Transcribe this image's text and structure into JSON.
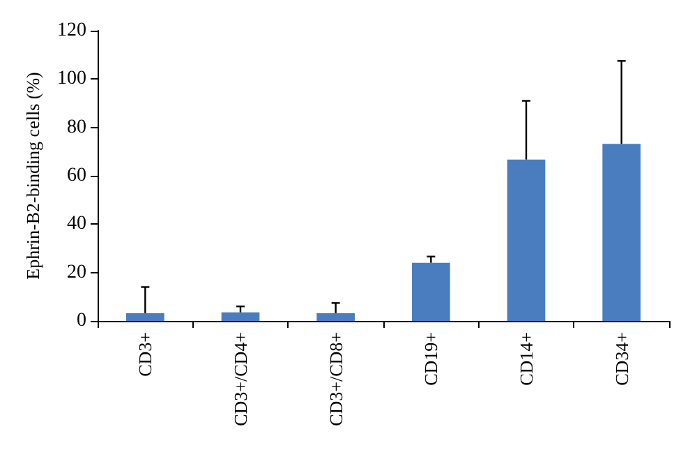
{
  "chart_data": {
    "type": "bar",
    "ylabel": "Ephrin-B2-binding cells (%)",
    "categories": [
      "CD3+",
      "CD3+/CD4+",
      "CD3+/CD8+",
      "CD19+",
      "CD14+",
      "CD34+"
    ],
    "values": [
      3.2,
      3.5,
      3.2,
      24,
      66.7,
      73.2
    ],
    "errors": [
      [
        3.2,
        14
      ],
      [
        3.5,
        6
      ],
      [
        3.2,
        7.4
      ],
      [
        24,
        26.6
      ],
      [
        66.7,
        91
      ],
      [
        73.2,
        107.5
      ]
    ],
    "color": "#4a7dc0",
    "ylim": [
      0,
      120
    ],
    "yticks": [
      0,
      20,
      40,
      60,
      80,
      100,
      120
    ],
    "grid": false
  }
}
